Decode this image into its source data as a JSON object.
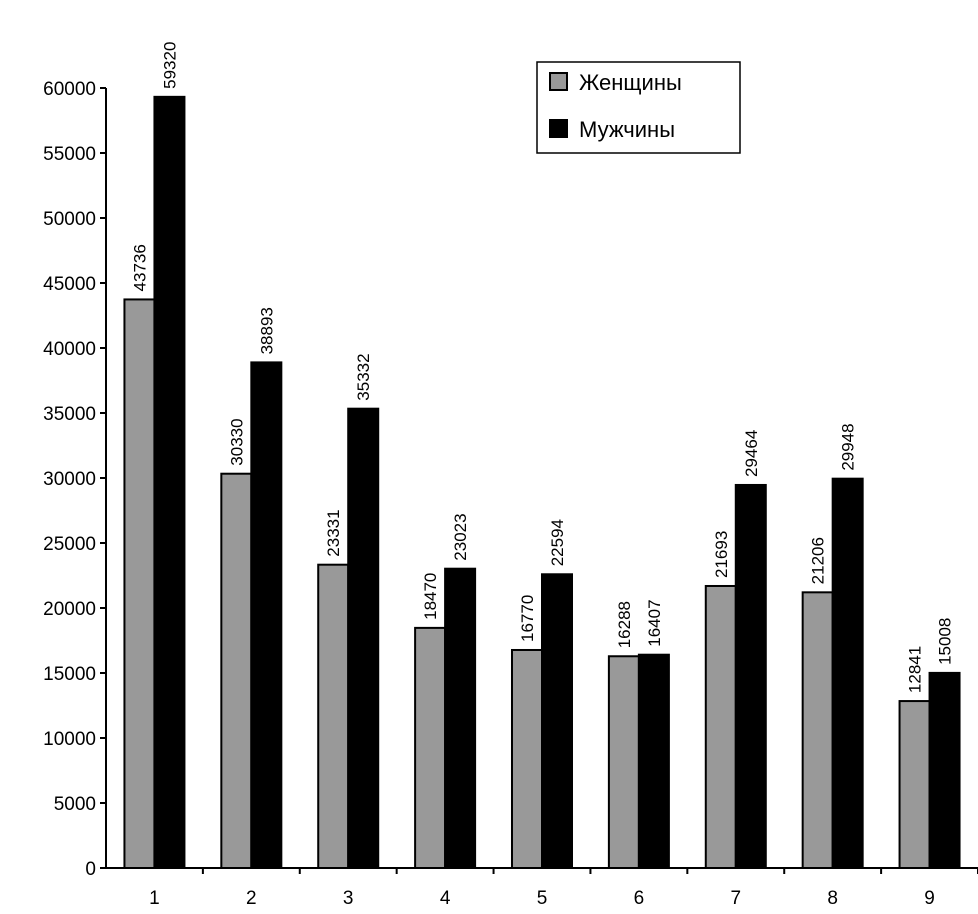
{
  "chart_data": {
    "type": "bar",
    "categories": [
      "1",
      "2",
      "3",
      "4",
      "5",
      "6",
      "7",
      "8",
      "9"
    ],
    "series": [
      {
        "name": "Женщины",
        "color": "#999999",
        "values": [
          43736,
          30330,
          23331,
          18470,
          16770,
          16288,
          21693,
          21206,
          12841
        ],
        "labels": [
          "43736",
          "30330",
          "23331",
          "18470",
          "16770",
          "16288",
          "21693",
          "21206",
          "12841"
        ]
      },
      {
        "name": "Мужчины",
        "color": "#000000",
        "values": [
          59320,
          38893,
          35332,
          23023,
          22594,
          16407,
          29464,
          29948,
          15008
        ],
        "labels": [
          "59320",
          "38893",
          "35332",
          "23023",
          "22594",
          "16407",
          "29464",
          "29948",
          "15008"
        ]
      }
    ],
    "yticks": [
      "0",
      "5000",
      "10000",
      "15000",
      "20000",
      "25000",
      "30000",
      "35000",
      "40000",
      "45000",
      "50000",
      "55000",
      "60000"
    ],
    "ylim": [
      0,
      60000
    ],
    "grid": false,
    "legend_position": "top-right"
  }
}
